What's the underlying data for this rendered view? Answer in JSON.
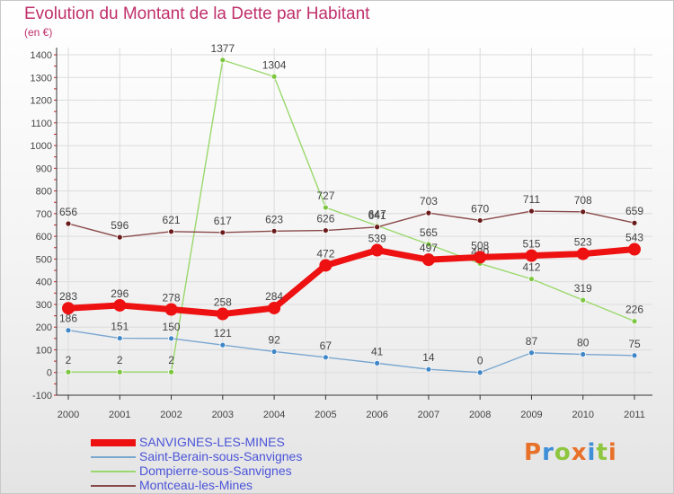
{
  "title": "Evolution du Montant de la Dette par Habitant",
  "unit": "(en €)",
  "logo": "Proxiti",
  "colors": {
    "title": "#c0306b",
    "grid": "#dcdcdc",
    "axis": "#333333",
    "tick_red": "#cc2222",
    "label": "#444444"
  },
  "chart_data": {
    "type": "line",
    "title": "Evolution du Montant de la Dette par Habitant",
    "ylabel": "(en €)",
    "xlabel": "",
    "x": [
      "2000",
      "2001",
      "2002",
      "2003",
      "2004",
      "2005",
      "2006",
      "2007",
      "2008",
      "2009",
      "2010",
      "2011"
    ],
    "ylim": [
      -100,
      1400
    ],
    "yticks": [
      "1400",
      "1300",
      "1200",
      "1100",
      "1000",
      "900",
      "800",
      "700",
      "600",
      "500",
      "400",
      "300",
      "200",
      "100",
      "0",
      "-100"
    ],
    "grid": true,
    "legend_position": "bottom-left",
    "series": [
      {
        "name": "SANVIGNES-LES-MINES",
        "values": [
          283,
          296,
          278,
          258,
          284,
          472,
          539,
          497,
          508,
          515,
          523,
          543
        ],
        "labels": [
          "283",
          "296",
          "278",
          "258",
          "284",
          "472",
          "539",
          "497",
          "508",
          "515",
          "523",
          "543"
        ],
        "color": "#ee1111",
        "marker_color": "#ee1111",
        "emphasis": true
      },
      {
        "name": "Saint-Berain-sous-Sanvignes",
        "values": [
          186,
          151,
          150,
          121,
          92,
          67,
          41,
          14,
          0,
          87,
          80,
          75
        ],
        "labels": [
          "186",
          "151",
          "150",
          "121",
          "92",
          "67",
          "41",
          "14",
          "0",
          "87",
          "80",
          "75"
        ],
        "color": "#7aa7d0",
        "marker_color": "#3f87c8",
        "emphasis": false
      },
      {
        "name": "Dompierre-sous-Sanvignes",
        "values": [
          2,
          2,
          2,
          1377,
          1304,
          727,
          647,
          565,
          480,
          412,
          319,
          226
        ],
        "labels": [
          "2",
          "2",
          "2",
          "1377",
          "1304",
          "727",
          "647",
          "565",
          "480",
          "412",
          "319",
          "226"
        ],
        "color": "#9ad86b",
        "marker_color": "#7cc73f",
        "emphasis": false
      },
      {
        "name": "Montceau-les-Mines",
        "values": [
          656,
          596,
          621,
          617,
          623,
          626,
          641,
          703,
          670,
          711,
          708,
          659
        ],
        "labels": [
          "656",
          "596",
          "621",
          "617",
          "623",
          "626",
          "641",
          "703",
          "670",
          "711",
          "708",
          "659"
        ],
        "color": "#8a4a4a",
        "marker_color": "#6a1a1a",
        "emphasis": false
      }
    ]
  }
}
